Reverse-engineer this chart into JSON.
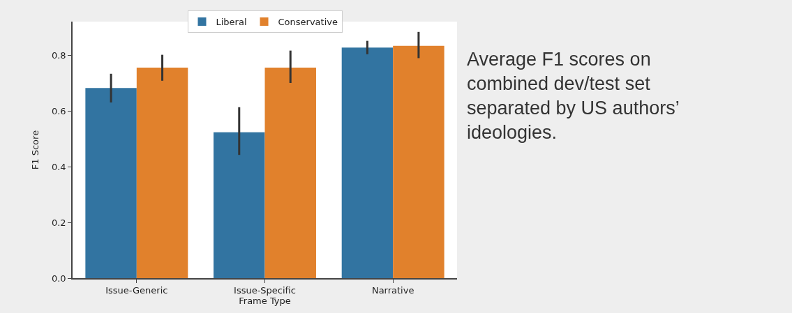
{
  "chart_data": {
    "type": "bar",
    "xlabel": "Frame Type",
    "ylabel": "F1 Score",
    "categories": [
      "Issue-Generic",
      "Issue-Specific",
      "Narrative"
    ],
    "series": [
      {
        "name": "Liberal",
        "color": "#3274a1",
        "values": [
          0.682,
          0.523,
          0.827
        ],
        "errors": [
          [
            0.63,
            0.733
          ],
          [
            0.442,
            0.613
          ],
          [
            0.803,
            0.851
          ]
        ]
      },
      {
        "name": "Conservative",
        "color": "#e1812c",
        "values": [
          0.755,
          0.755,
          0.833
        ],
        "errors": [
          [
            0.708,
            0.801
          ],
          [
            0.7,
            0.816
          ],
          [
            0.789,
            0.883
          ]
        ]
      }
    ],
    "ylim": [
      0,
      0.92
    ],
    "yticks": [
      {
        "value": 0,
        "label": "0.0"
      },
      {
        "value": 0.2,
        "label": "0.2"
      },
      {
        "value": 0.4,
        "label": "0.4"
      },
      {
        "value": 0.6,
        "label": "0.6"
      },
      {
        "value": 0.8,
        "label": "0.8"
      }
    ],
    "legend": "top",
    "annotations": [
      "Average F1 scores on combined dev/test set separated by US authors’ ideologies."
    ]
  }
}
